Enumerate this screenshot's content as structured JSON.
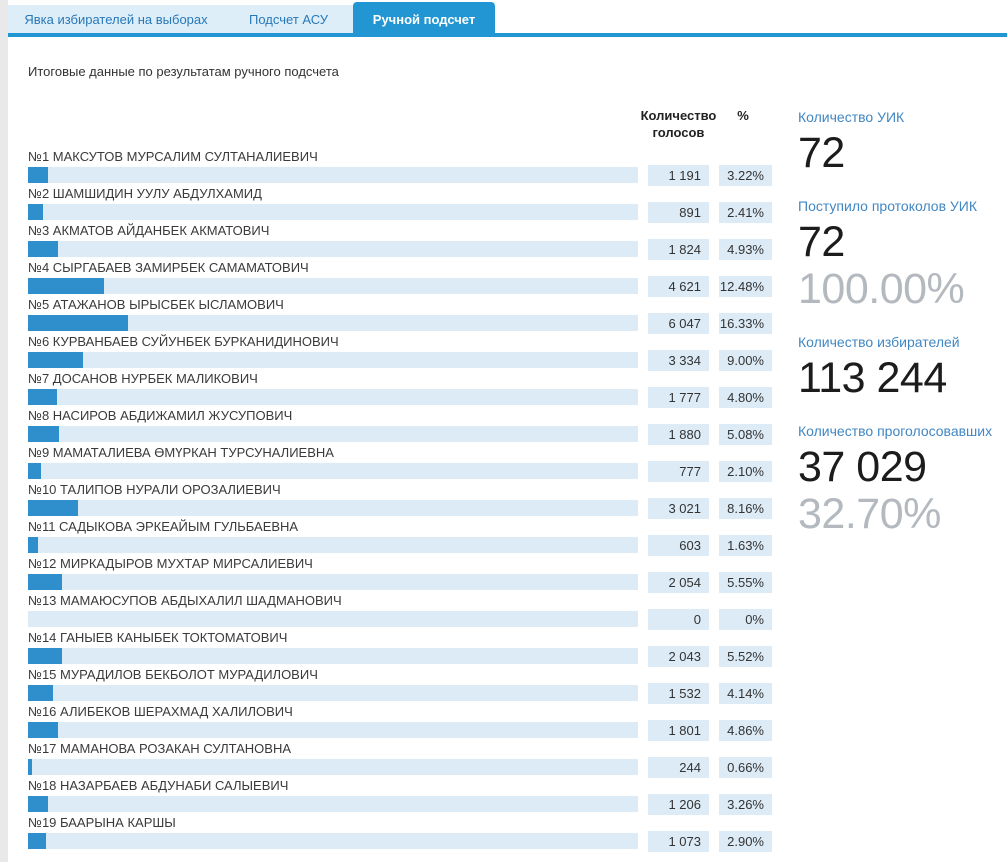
{
  "tabs": [
    {
      "label": "Явка избирателей на выборах",
      "active": false
    },
    {
      "label": "Подсчет АСУ",
      "active": false
    },
    {
      "label": "Ручной подсчет",
      "active": true
    }
  ],
  "title": "Итоговые данные по результатам ручного подсчета",
  "table": {
    "header_votes_line1": "Количество",
    "header_votes_line2": "голосов",
    "header_pct": "%"
  },
  "candidates": [
    {
      "label": "№1 МАКСУТОВ МУРСАЛИМ СУЛТАНАЛИЕВИЧ",
      "votes": "1 191",
      "pct": "3.22%",
      "pct_value": 3.22
    },
    {
      "label": "№2 ШАМШИДИН УУЛУ АБДУЛХАМИД",
      "votes": "891",
      "pct": "2.41%",
      "pct_value": 2.41
    },
    {
      "label": "№3 АКМАТОВ АЙДАНБЕК АКМАТОВИЧ",
      "votes": "1 824",
      "pct": "4.93%",
      "pct_value": 4.93
    },
    {
      "label": "№4 СЫРГАБАЕВ ЗАМИРБЕК САМАМАТОВИЧ",
      "votes": "4 621",
      "pct": "12.48%",
      "pct_value": 12.48
    },
    {
      "label": "№5 АТАЖАНОВ ЫРЫСБЕК ЫСЛАМОВИЧ",
      "votes": "6 047",
      "pct": "16.33%",
      "pct_value": 16.33
    },
    {
      "label": "№6 КУРВАНБАЕВ СУЙУНБЕК БУРКАНИДИНОВИЧ",
      "votes": "3 334",
      "pct": "9.00%",
      "pct_value": 9.0
    },
    {
      "label": "№7 ДОСАНОВ НУРБЕК МАЛИКОВИЧ",
      "votes": "1 777",
      "pct": "4.80%",
      "pct_value": 4.8
    },
    {
      "label": "№8 НАСИРОВ АБДИЖАМИЛ ЖУСУПОВИЧ",
      "votes": "1 880",
      "pct": "5.08%",
      "pct_value": 5.08
    },
    {
      "label": "№9 МАМАТАЛИЕВА ӨМҮРКАН ТУРСУНАЛИЕВНА",
      "votes": "777",
      "pct": "2.10%",
      "pct_value": 2.1
    },
    {
      "label": "№10 ТАЛИПОВ НУРАЛИ ОРОЗАЛИЕВИЧ",
      "votes": "3 021",
      "pct": "8.16%",
      "pct_value": 8.16
    },
    {
      "label": "№11 САДЫКОВА ЭРКЕАЙЫМ ГУЛЬБАЕВНА",
      "votes": "603",
      "pct": "1.63%",
      "pct_value": 1.63
    },
    {
      "label": "№12 МИРКАДЫРОВ МУХТАР МИРСАЛИЕВИЧ",
      "votes": "2 054",
      "pct": "5.55%",
      "pct_value": 5.55
    },
    {
      "label": "№13 МАМАЮСУПОВ АБДЫХАЛИЛ ШАДМАНОВИЧ",
      "votes": "0",
      "pct": "0%",
      "pct_value": 0
    },
    {
      "label": "№14 ГАНЫЕВ КАНЫБЕК ТОКТОМАТОВИЧ",
      "votes": "2 043",
      "pct": "5.52%",
      "pct_value": 5.52
    },
    {
      "label": "№15 МУРАДИЛОВ БЕКБОЛОТ МУРАДИЛОВИЧ",
      "votes": "1 532",
      "pct": "4.14%",
      "pct_value": 4.14
    },
    {
      "label": "№16 АЛИБЕКОВ ШЕРАХМАД ХАЛИЛОВИЧ",
      "votes": "1 801",
      "pct": "4.86%",
      "pct_value": 4.86
    },
    {
      "label": "№17 МАМАНОВА РОЗАКАН СУЛТАНОВНА",
      "votes": "244",
      "pct": "0.66%",
      "pct_value": 0.66
    },
    {
      "label": "№18 НАЗАРБАЕВ АБДУНАБИ САЛЫЕВИЧ",
      "votes": "1 206",
      "pct": "3.26%",
      "pct_value": 3.26
    },
    {
      "label": "№19 БААРЫНА КАРШЫ",
      "votes": "1 073",
      "pct": "2.90%",
      "pct_value": 2.9
    }
  ],
  "stats": [
    {
      "label": "Количество УИК",
      "value": "72",
      "sub": null
    },
    {
      "label": "Поступило протоколов УИК",
      "value": "72",
      "sub": "100.00%"
    },
    {
      "label": "Количество избирателей",
      "value": "113 244",
      "sub": null
    },
    {
      "label": "Количество проголосовавших",
      "value": "37 029",
      "sub": "32.70%"
    }
  ],
  "colors": {
    "accent_blue": "#2196d3",
    "bar_fill": "#2e8fcc",
    "bar_track": "#dcebf6",
    "inactive_tab_bg": "#ddeef9",
    "tab_text_blue": "#2878b8",
    "stat_label_blue": "#4187c3",
    "stat_sub_gray": "#b3b9be"
  }
}
